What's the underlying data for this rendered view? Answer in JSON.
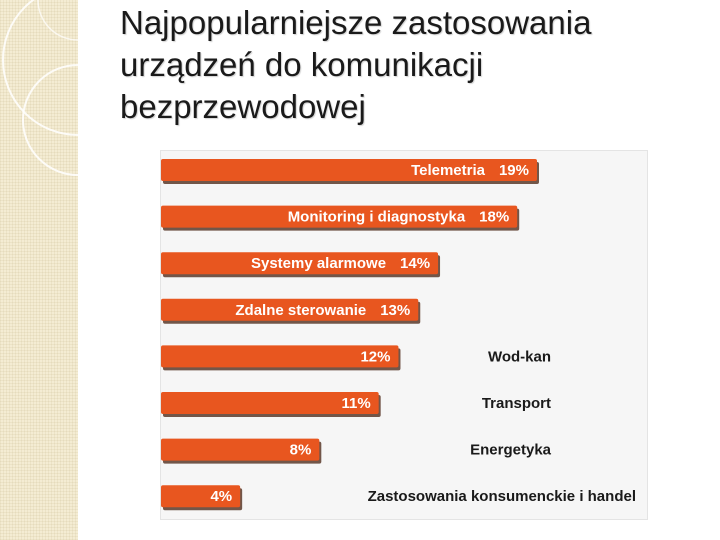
{
  "title": "Najpopularniejsze zastosowania\nurządzeń do komunikacji\nbezprzewodowej",
  "colors": {
    "bar_fill": "#e8561f",
    "bar_shadow": "#5a3a2a",
    "bar_text": "#ffffff",
    "label_text": "#1a1a1a",
    "panel_bg": "#f6f6f6"
  },
  "chart_data": {
    "type": "bar",
    "orientation": "horizontal",
    "title": "",
    "xlabel": "",
    "ylabel": "",
    "xlim": [
      0,
      19
    ],
    "grid": false,
    "categories": [
      "Telemetria",
      "Monitoring i diagnostyka",
      "Systemy alarmowe",
      "Zdalne sterowanie",
      "Wod-kan",
      "Transport",
      "Energetyka",
      "Zastosowania konsumenckie i handel"
    ],
    "values": [
      19,
      18,
      14,
      13,
      12,
      11,
      8,
      4
    ],
    "value_labels": [
      "19%",
      "18%",
      "14%",
      "13%",
      "12%",
      "11%",
      "8%",
      "4%"
    ]
  }
}
